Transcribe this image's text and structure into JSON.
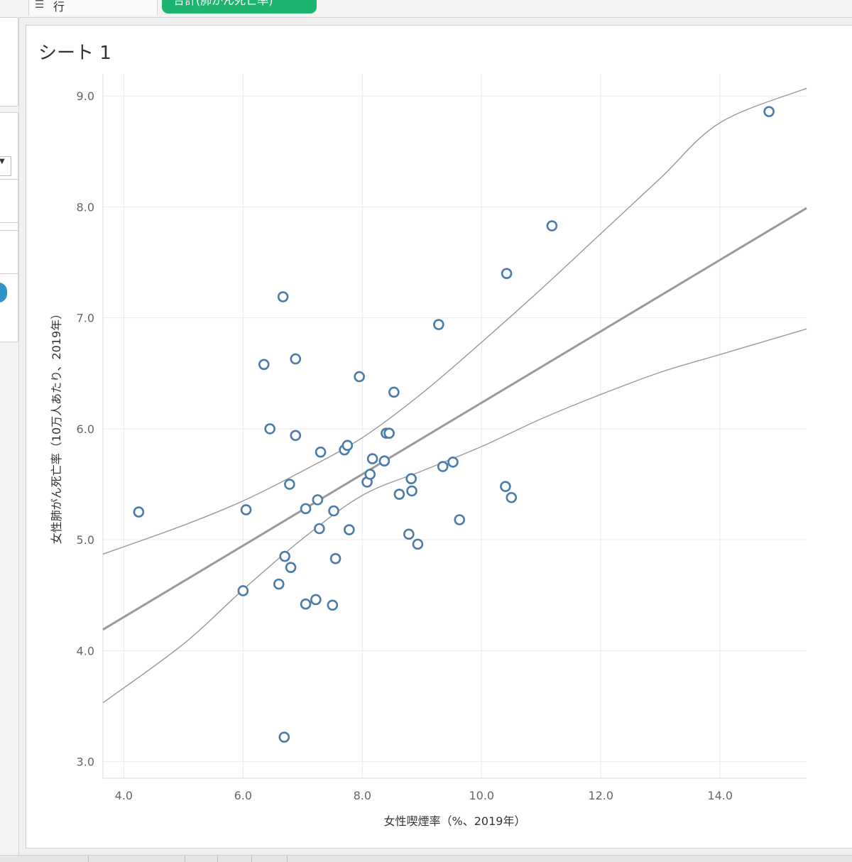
{
  "shelf": {
    "rows_label": "行",
    "rows_pill": "合計(肺がん死亡率)"
  },
  "sheet": {
    "title": "シート 1"
  },
  "colors": {
    "point": "#4a7bab",
    "trend": "#9a9a9a",
    "grid": "#ececec",
    "pill": "#1db46f"
  },
  "chart_data": {
    "type": "scatter",
    "xlabel": "女性喫煙率（%、2019年）",
    "ylabel": "女性肺がん死亡率（10万人あたり、2019年）",
    "xlim": [
      3.65,
      15.45
    ],
    "ylim": [
      2.85,
      9.2
    ],
    "xticks": [
      4.0,
      6.0,
      8.0,
      10.0,
      12.0,
      14.0
    ],
    "yticks": [
      3.0,
      4.0,
      5.0,
      6.0,
      7.0,
      8.0,
      9.0
    ],
    "grid": true,
    "points": [
      {
        "x": 4.25,
        "y": 5.25
      },
      {
        "x": 6.0,
        "y": 4.54
      },
      {
        "x": 6.05,
        "y": 5.27
      },
      {
        "x": 6.35,
        "y": 6.58
      },
      {
        "x": 6.45,
        "y": 6.0
      },
      {
        "x": 6.6,
        "y": 4.6
      },
      {
        "x": 6.67,
        "y": 7.19
      },
      {
        "x": 6.69,
        "y": 3.22
      },
      {
        "x": 6.7,
        "y": 4.85
      },
      {
        "x": 6.78,
        "y": 5.5
      },
      {
        "x": 6.8,
        "y": 4.75
      },
      {
        "x": 6.88,
        "y": 6.63
      },
      {
        "x": 6.88,
        "y": 5.94
      },
      {
        "x": 7.05,
        "y": 4.42
      },
      {
        "x": 7.05,
        "y": 5.28
      },
      {
        "x": 7.22,
        "y": 4.46
      },
      {
        "x": 7.25,
        "y": 5.36
      },
      {
        "x": 7.28,
        "y": 5.1
      },
      {
        "x": 7.3,
        "y": 5.79
      },
      {
        "x": 7.5,
        "y": 4.41
      },
      {
        "x": 7.52,
        "y": 5.26
      },
      {
        "x": 7.55,
        "y": 4.83
      },
      {
        "x": 7.7,
        "y": 5.81
      },
      {
        "x": 7.75,
        "y": 5.85
      },
      {
        "x": 7.78,
        "y": 5.09
      },
      {
        "x": 7.95,
        "y": 6.47
      },
      {
        "x": 8.08,
        "y": 5.52
      },
      {
        "x": 8.13,
        "y": 5.59
      },
      {
        "x": 8.17,
        "y": 5.73
      },
      {
        "x": 8.37,
        "y": 5.71
      },
      {
        "x": 8.4,
        "y": 5.96
      },
      {
        "x": 8.45,
        "y": 5.96
      },
      {
        "x": 8.53,
        "y": 6.33
      },
      {
        "x": 8.62,
        "y": 5.41
      },
      {
        "x": 8.78,
        "y": 5.05
      },
      {
        "x": 8.82,
        "y": 5.55
      },
      {
        "x": 8.83,
        "y": 5.44
      },
      {
        "x": 8.93,
        "y": 4.96
      },
      {
        "x": 9.28,
        "y": 6.94
      },
      {
        "x": 9.35,
        "y": 5.66
      },
      {
        "x": 9.52,
        "y": 5.7
      },
      {
        "x": 9.63,
        "y": 5.18
      },
      {
        "x": 10.4,
        "y": 5.48
      },
      {
        "x": 10.42,
        "y": 7.4
      },
      {
        "x": 10.5,
        "y": 5.38
      },
      {
        "x": 11.18,
        "y": 7.83
      },
      {
        "x": 14.82,
        "y": 8.86
      }
    ],
    "trend_line": {
      "x": [
        3.65,
        15.45
      ],
      "y": [
        4.19,
        7.99
      ]
    },
    "confidence_upper": [
      {
        "x": 3.65,
        "y": 4.87
      },
      {
        "x": 5.0,
        "y": 5.13
      },
      {
        "x": 6.0,
        "y": 5.35
      },
      {
        "x": 7.0,
        "y": 5.62
      },
      {
        "x": 8.0,
        "y": 5.92
      },
      {
        "x": 9.0,
        "y": 6.32
      },
      {
        "x": 10.0,
        "y": 6.78
      },
      {
        "x": 11.0,
        "y": 7.26
      },
      {
        "x": 12.0,
        "y": 7.76
      },
      {
        "x": 13.0,
        "y": 8.26
      },
      {
        "x": 14.0,
        "y": 8.76
      },
      {
        "x": 15.45,
        "y": 9.07
      }
    ],
    "confidence_lower": [
      {
        "x": 3.65,
        "y": 3.53
      },
      {
        "x": 5.0,
        "y": 4.06
      },
      {
        "x": 6.0,
        "y": 4.55
      },
      {
        "x": 7.0,
        "y": 5.01
      },
      {
        "x": 8.0,
        "y": 5.4
      },
      {
        "x": 9.0,
        "y": 5.62
      },
      {
        "x": 10.0,
        "y": 5.84
      },
      {
        "x": 11.0,
        "y": 6.09
      },
      {
        "x": 12.0,
        "y": 6.31
      },
      {
        "x": 13.0,
        "y": 6.51
      },
      {
        "x": 14.0,
        "y": 6.67
      },
      {
        "x": 15.45,
        "y": 6.9
      }
    ]
  }
}
